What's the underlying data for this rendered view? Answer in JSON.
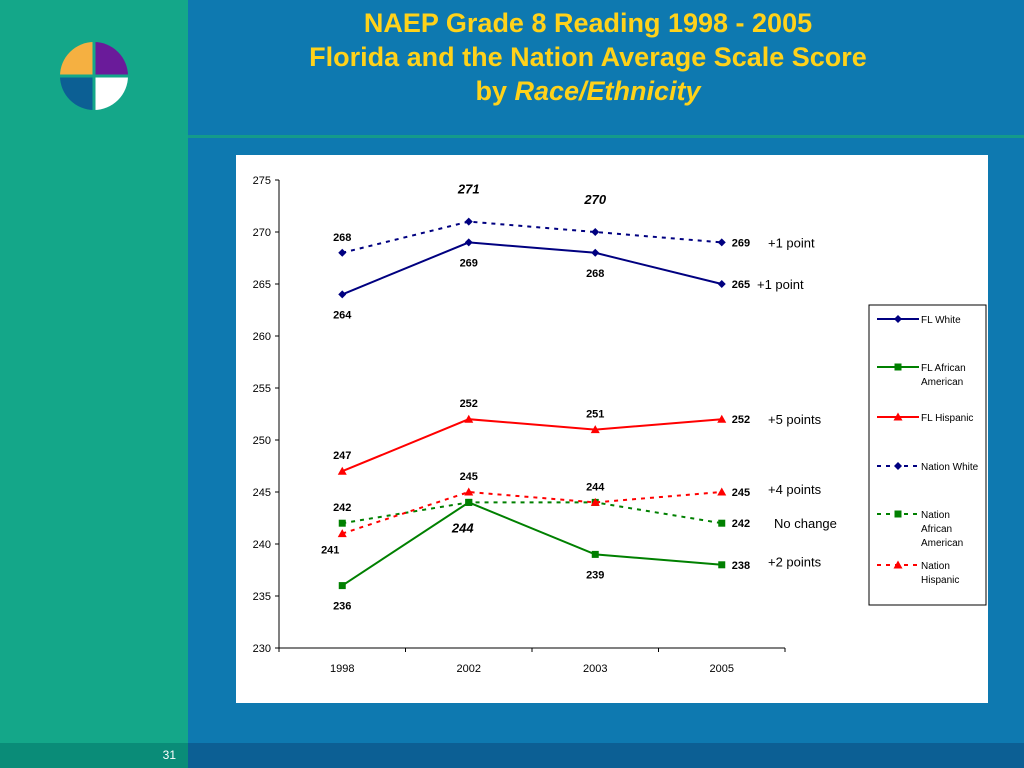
{
  "slide": {
    "title_line1": "NAEP Grade 8 Reading 1998 - 2005",
    "title_line2": "Florida and the Nation Average Scale Score",
    "title_line3_prefix": "by ",
    "title_line3_italic": "Race/Ethnicity",
    "page_number": "31"
  },
  "colors": {
    "navy": "#000080",
    "green": "#008000",
    "red": "#ff0000",
    "background_blue": "#0e79b0",
    "teal": "#14a789",
    "title_yellow": "#ffd21a"
  },
  "chart_data": {
    "type": "line",
    "categories": [
      "1998",
      "2002",
      "2003",
      "2005"
    ],
    "ylim": [
      230,
      275
    ],
    "yticks": [
      230,
      235,
      240,
      245,
      250,
      255,
      260,
      265,
      270,
      275
    ],
    "series": [
      {
        "name": "FL White",
        "values": [
          264,
          269,
          268,
          265
        ],
        "color": "#000080",
        "dash": false,
        "marker": "diamond",
        "labels": [
          "264",
          "269",
          "268",
          "265"
        ],
        "label_pos": [
          "below",
          "below",
          "below",
          "right"
        ]
      },
      {
        "name": "FL African American",
        "values": [
          236,
          244,
          239,
          238
        ],
        "color": "#008000",
        "dash": false,
        "marker": "square",
        "labels": [
          "236",
          "244",
          "239",
          "238"
        ],
        "label_pos": [
          "below",
          "below-italic",
          "below",
          "right"
        ]
      },
      {
        "name": "FL Hispanic",
        "values": [
          247,
          252,
          251,
          252
        ],
        "color": "#ff0000",
        "dash": false,
        "marker": "triangle",
        "labels": [
          "247",
          "252",
          "251",
          "252"
        ],
        "label_pos": [
          "above",
          "above",
          "above",
          "right"
        ]
      },
      {
        "name": "Nation White",
        "values": [
          268,
          271,
          270,
          269
        ],
        "color": "#000080",
        "dash": true,
        "marker": "diamond",
        "labels": [
          "268",
          "271",
          "270",
          "269"
        ],
        "label_pos": [
          "above",
          "above-italic",
          "above-italic",
          "right"
        ]
      },
      {
        "name": "Nation African American",
        "values": [
          242,
          244,
          244,
          242
        ],
        "color": "#008000",
        "dash": true,
        "marker": "square",
        "labels": [
          "242",
          "",
          "244",
          "242"
        ],
        "label_pos": [
          "above",
          "none",
          "above",
          "right"
        ]
      },
      {
        "name": "Nation Hispanic",
        "values": [
          241,
          245,
          244,
          245
        ],
        "color": "#ff0000",
        "dash": true,
        "marker": "triangle",
        "labels": [
          "241",
          "245",
          "",
          "245"
        ],
        "label_pos": [
          "below-left",
          "above",
          "none",
          "right"
        ]
      }
    ],
    "legend_entries": [
      [
        "FL White"
      ],
      [
        "FL African",
        "American"
      ],
      [
        "FL Hispanic"
      ],
      [
        "Nation White"
      ],
      [
        "Nation",
        "African",
        "American"
      ],
      [
        "Nation",
        "Hispanic"
      ]
    ],
    "legend_position": "right",
    "annotations": [
      {
        "text": "+1 point",
        "value": 269
      },
      {
        "text": "+1 point",
        "value": 265
      },
      {
        "text": "+5 points",
        "value": 252
      },
      {
        "text": "+4 points",
        "value": 245.3
      },
      {
        "text": "No change",
        "value": 242
      },
      {
        "text": "+2 points",
        "value": 238.3
      }
    ]
  }
}
